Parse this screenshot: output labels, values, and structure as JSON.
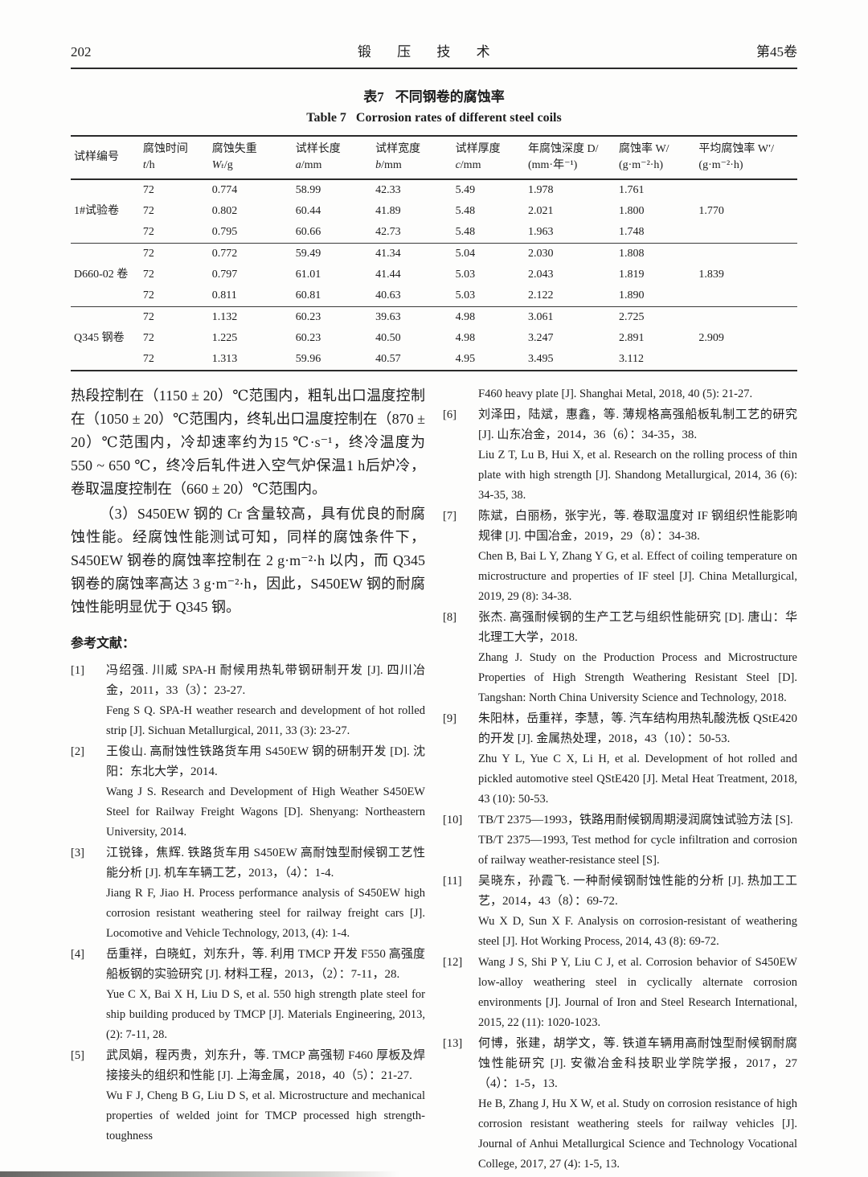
{
  "page": {
    "page_number": "202",
    "journal_title": "锻 压 技 术",
    "volume": "第45卷"
  },
  "table": {
    "title_zh_label": "表7",
    "title_zh_text": "不同钢卷的腐蚀率",
    "title_en_label": "Table 7",
    "title_en_text": "Corrosion rates of different steel coils",
    "columns": [
      {
        "zh": "试样编号",
        "unit": ""
      },
      {
        "zh": "腐蚀时间",
        "unit": "t/h"
      },
      {
        "zh": "腐蚀失重",
        "unit": "Wₜ/g"
      },
      {
        "zh": "试样长度",
        "unit": "a/mm"
      },
      {
        "zh": "试样宽度",
        "unit": "b/mm"
      },
      {
        "zh": "试样厚度",
        "unit": "c/mm"
      },
      {
        "zh": "年腐蚀深度 D/",
        "unit": "(mm·年⁻¹)"
      },
      {
        "zh": "腐蚀率 W/",
        "unit": "(g·m⁻²·h)"
      },
      {
        "zh": "平均腐蚀率 W′/",
        "unit": "(g·m⁻²·h)"
      }
    ],
    "groups": [
      {
        "label": "1#试验卷",
        "avg": "1.770",
        "rows": [
          [
            "72",
            "0.774",
            "58.99",
            "42.33",
            "5.49",
            "1.978",
            "1.761"
          ],
          [
            "72",
            "0.802",
            "60.44",
            "41.89",
            "5.48",
            "2.021",
            "1.800"
          ],
          [
            "72",
            "0.795",
            "60.66",
            "42.73",
            "5.48",
            "1.963",
            "1.748"
          ]
        ]
      },
      {
        "label": "D660-02 卷",
        "avg": "1.839",
        "rows": [
          [
            "72",
            "0.772",
            "59.49",
            "41.34",
            "5.04",
            "2.030",
            "1.808"
          ],
          [
            "72",
            "0.797",
            "61.01",
            "41.44",
            "5.03",
            "2.043",
            "1.819"
          ],
          [
            "72",
            "0.811",
            "60.81",
            "40.63",
            "5.03",
            "2.122",
            "1.890"
          ]
        ]
      },
      {
        "label": "Q345 钢卷",
        "avg": "2.909",
        "rows": [
          [
            "72",
            "1.132",
            "60.23",
            "39.63",
            "4.98",
            "3.061",
            "2.725"
          ],
          [
            "72",
            "1.225",
            "60.23",
            "40.50",
            "4.98",
            "3.247",
            "2.891"
          ],
          [
            "72",
            "1.313",
            "59.96",
            "40.57",
            "4.95",
            "3.495",
            "3.112"
          ]
        ]
      }
    ]
  },
  "body": {
    "para1": "热段控制在（1150 ± 20）℃范围内，粗轧出口温度控制在（1050 ± 20）℃范围内，终轧出口温度控制在（870 ± 20）℃范围内，冷却速率约为15 ℃·s⁻¹，终冷温度为 550 ~ 650 ℃，终冷后轧件进入空气炉保温1 h后炉冷，卷取温度控制在（660 ± 20）℃范围内。",
    "para2": "（3）S450EW 钢的 Cr 含量较高，具有优良的耐腐蚀性能。经腐蚀性能测试可知，同样的腐蚀条件下，S450EW 钢卷的腐蚀率控制在 2 g·m⁻²·h 以内，而 Q345 钢卷的腐蚀率高达 3 g·m⁻²·h，因此，S450EW 钢的耐腐蚀性能明显优于 Q345 钢。"
  },
  "references": {
    "heading": "参考文献：",
    "left": [
      {
        "num": "[1]",
        "zh": "冯绍强. 川威 SPA-H 耐候用热轧带钢研制开发 [J]. 四川冶金，2011，33（3）：23-27.",
        "en": "Feng S Q. SPA-H weather research and development of hot rolled strip [J]. Sichuan Metallurgical, 2011, 33 (3): 23-27."
      },
      {
        "num": "[2]",
        "zh": "王俊山. 高耐蚀性铁路货车用 S450EW 钢的研制开发 [D]. 沈阳：东北大学，2014.",
        "en": "Wang J S. Research and Development of High Weather S450EW Steel for Railway Freight Wagons [D]. Shenyang: Northeastern University, 2014."
      },
      {
        "num": "[3]",
        "zh": "江锐锋，焦辉. 铁路货车用 S450EW 高耐蚀型耐候钢工艺性能分析 [J]. 机车车辆工艺，2013，（4）：1-4.",
        "en": "Jiang R F, Jiao H. Process performance analysis of S450EW high corrosion resistant weathering steel for railway freight cars [J]. Locomotive and Vehicle Technology, 2013, (4): 1-4."
      },
      {
        "num": "[4]",
        "zh": "岳重祥，白晓虹，刘东升，等. 利用 TMCP 开发 F550 高强度船板钢的实验研究 [J]. 材料工程，2013，（2）：7-11，28.",
        "en": "Yue C X, Bai X H, Liu D S, et al. 550 high strength plate steel for ship building produced by TMCP [J]. Materials Engineering, 2013, (2): 7-11, 28."
      },
      {
        "num": "[5]",
        "zh": "武凤娟，程丙贵，刘东升，等. TMCP 高强韧 F460 厚板及焊接接头的组织和性能 [J]. 上海金属，2018，40（5）：21-27.",
        "en": "Wu F J, Cheng B G, Liu D S, et al. Microstructure and mechanical properties of welded joint for TMCP processed high strength-toughness"
      }
    ],
    "right": [
      {
        "num": "",
        "en": "F460 heavy plate [J]. Shanghai Metal, 2018, 40 (5): 21-27."
      },
      {
        "num": "[6]",
        "zh": "刘泽田，陆斌，惠鑫，等. 薄规格高强船板轧制工艺的研究 [J]. 山东冶金，2014，36（6）：34-35，38.",
        "en": "Liu Z T, Lu B, Hui X, et al. Research on the rolling process of thin plate with high strength [J]. Shandong Metallurgical, 2014, 36 (6): 34-35, 38."
      },
      {
        "num": "[7]",
        "zh": "陈斌，白丽杨，张宇光，等. 卷取温度对 IF 钢组织性能影响规律 [J]. 中国冶金，2019，29（8）：34-38.",
        "en": "Chen B, Bai L Y, Zhang Y G, et al. Effect of coiling temperature on microstructure and properties of IF steel [J]. China Metallurgical, 2019, 29 (8): 34-38."
      },
      {
        "num": "[8]",
        "zh": "张杰. 高强耐候钢的生产工艺与组织性能研究 [D]. 唐山：华北理工大学，2018.",
        "en": "Zhang J. Study on the Production Process and Microstructure Properties of High Strength Weathering Resistant Steel [D]. Tangshan: North China University Science and Technology, 2018."
      },
      {
        "num": "[9]",
        "zh": "朱阳林，岳重祥，李慧，等. 汽车结构用热轧酸洗板 QStE420 的开发 [J]. 金属热处理，2018，43（10）：50-53.",
        "en": "Zhu Y L, Yue C X, Li H, et al. Development of hot rolled and pickled automotive steel QStE420 [J]. Metal Heat Treatment, 2018, 43 (10): 50-53."
      },
      {
        "num": "[10]",
        "zh": "TB/T 2375—1993，铁路用耐候钢周期浸润腐蚀试验方法 [S].",
        "en": "TB/T 2375—1993, Test method for cycle infiltration and corrosion of railway weather-resistance steel [S]."
      },
      {
        "num": "[11]",
        "zh": "吴晓东，孙霞飞. 一种耐候钢耐蚀性能的分析 [J]. 热加工工艺，2014，43（8）：69-72.",
        "en": "Wu X D, Sun X F. Analysis on corrosion-resistant of weathering steel [J]. Hot Working Process, 2014, 43 (8): 69-72."
      },
      {
        "num": "[12]",
        "en": "Wang J S, Shi P Y, Liu C J, et al. Corrosion behavior of S450EW low-alloy weathering steel in cyclically alternate corrosion environments [J]. Journal of Iron and Steel Research International, 2015, 22 (11): 1020-1023."
      },
      {
        "num": "[13]",
        "zh": "何博，张建，胡学文，等. 铁道车辆用高耐蚀型耐候钢耐腐蚀性能研究 [J]. 安徽冶金科技职业学院学报，2017，27（4）：1-5，13.",
        "en": "He B, Zhang J, Hu X W, et al. Study on corrosion resistance of high corrosion resistant weathering steels for railway vehicles [J]. Journal of Anhui Metallurgical Science and Technology Vocational College, 2017, 27 (4): 1-5, 13."
      }
    ]
  }
}
